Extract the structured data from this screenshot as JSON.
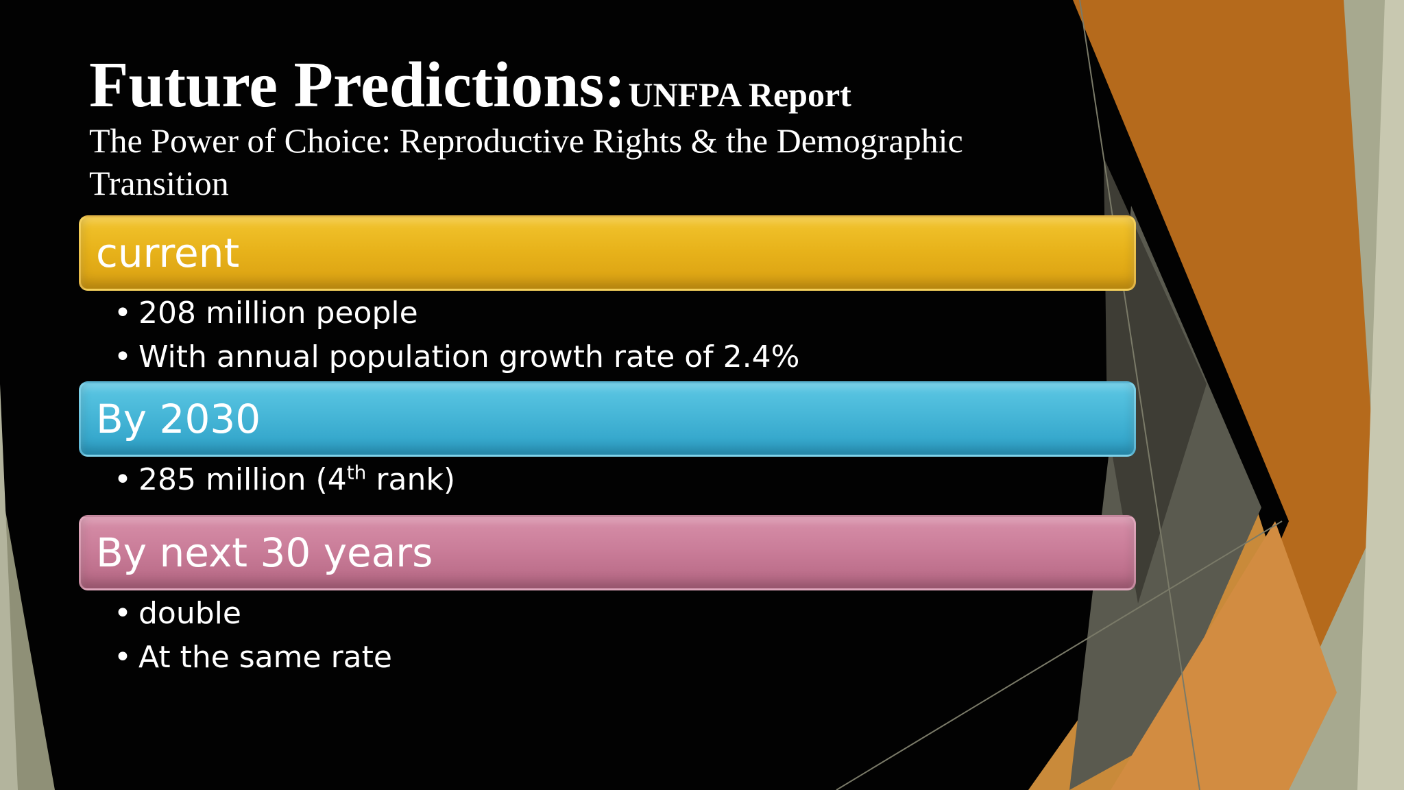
{
  "slide": {
    "title": "Future Predictions:",
    "title_sub": "UNFPA Report",
    "subtitle": "The Power of Choice: Reproductive Rights & the Demographic Transition",
    "colors": {
      "background": "#020202",
      "gold": "#e7b21a",
      "blue": "#45b5d6",
      "pink": "#c97c98",
      "decor_orange": "#b56a1c",
      "decor_olive": "#8f9077"
    }
  },
  "sections": [
    {
      "heading": "current",
      "bullets": [
        "208 million people",
        "With annual population growth rate of 2.4%"
      ]
    },
    {
      "heading": "By 2030",
      "bullets": [
        {
          "before": "285 million (4",
          "sup": "th",
          "after": " rank)"
        }
      ]
    },
    {
      "heading": "By next 30 years",
      "bullets": [
        "double",
        "At the same rate"
      ]
    }
  ]
}
